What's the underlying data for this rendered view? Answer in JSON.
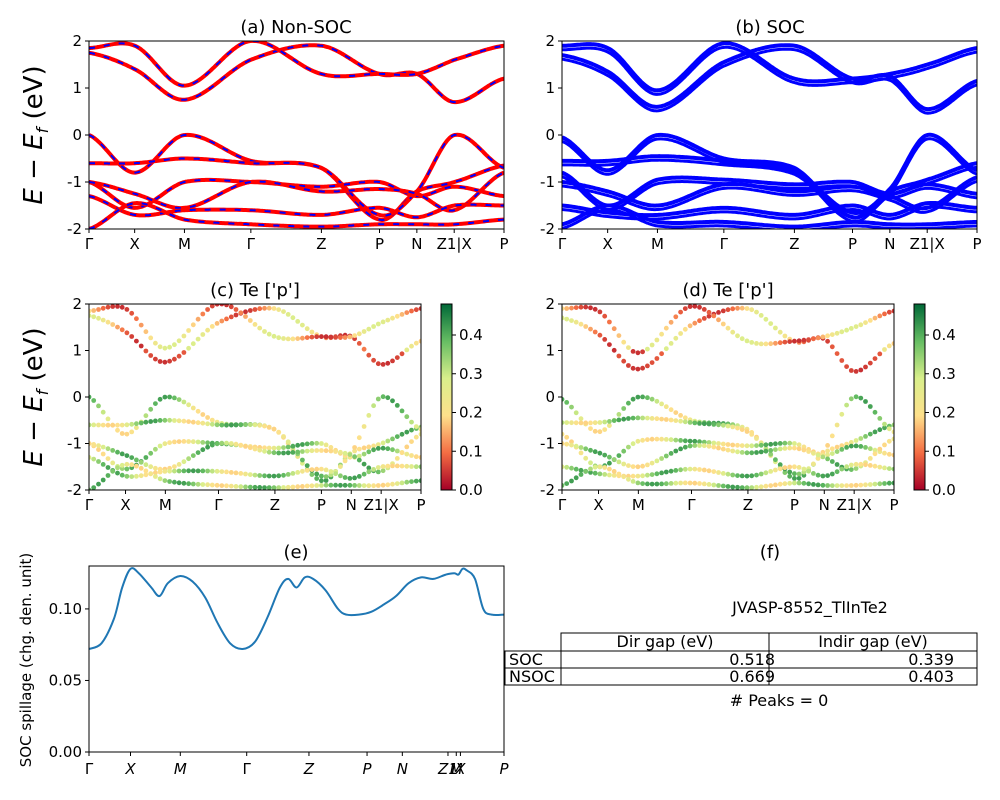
{
  "titles": {
    "a": "(a) Non-SOC",
    "b": "(b) SOC",
    "c": "(c)  Te ['p']",
    "d": "(d) Te ['p']",
    "e": "(e)",
    "f": "(f)"
  },
  "ylabels": {
    "band": "E − E_f (eV)",
    "spillage": "SOC spillage (chg. den. unit)"
  },
  "kpath": {
    "labels": [
      "Γ",
      "X",
      "M",
      "Γ",
      "Z",
      "P",
      "N",
      "Z1|X",
      "P"
    ],
    "positions": [
      0,
      0.11,
      0.23,
      0.39,
      0.56,
      0.7,
      0.79,
      0.88,
      1.0
    ]
  },
  "spillage_kpath": {
    "labels": [
      "Γ",
      "X",
      "M",
      "Γ",
      "Z",
      "P",
      "N",
      "Z1",
      "M",
      "X",
      "P"
    ],
    "positions": [
      0,
      0.1,
      0.22,
      0.38,
      0.53,
      0.67,
      0.755,
      0.865,
      0.885,
      0.895,
      1.0
    ]
  },
  "colorbar": {
    "ticks": [
      "0.0",
      "0.1",
      "0.2",
      "0.3",
      "0.4"
    ],
    "max": 0.48,
    "colors": [
      "#a50026",
      "#f46d43",
      "#fee08b",
      "#d9ef8b",
      "#66bd63",
      "#006837"
    ]
  },
  "colors": {
    "nonsoc_line": "#ff0000",
    "nonsoc_dash": "#0000ff",
    "soc_line": "#0000ff",
    "spillage_line": "#1f77b4"
  },
  "table": {
    "caption": "JVASP-8552_TlInTe2",
    "headers": [
      "Dir gap (eV)",
      "Indir gap (eV)"
    ],
    "rows": [
      {
        "label": "SOC",
        "dir": "0.518",
        "indir": "0.339"
      },
      {
        "label": "NSOC",
        "dir": "0.669",
        "indir": "0.403"
      }
    ],
    "peaks": "# Peaks = 0"
  },
  "chart_data": [
    {
      "type": "line",
      "title": "(a) Non-SOC",
      "ylabel": "E − E_f (eV)",
      "ylim": [
        -2,
        2
      ],
      "yticks": [
        2,
        1,
        0,
        -1,
        -2
      ],
      "x": [
        0,
        0.11,
        0.23,
        0.39,
        0.56,
        0.7,
        0.79,
        0.88,
        1.0
      ],
      "series": [
        {
          "values": [
            1.75,
            1.4,
            0.75,
            1.6,
            1.9,
            1.3,
            1.3,
            0.7,
            1.2
          ]
        },
        {
          "values": [
            1.85,
            1.9,
            1.05,
            2.0,
            1.3,
            1.3,
            1.3,
            1.6,
            1.9
          ]
        },
        {
          "values": [
            0.0,
            -0.8,
            -0.0,
            -0.55,
            -0.7,
            -1.8,
            -1.2,
            -1.0,
            -0.65
          ]
        },
        {
          "values": [
            -0.6,
            -0.6,
            -0.5,
            -0.6,
            -0.7,
            -1.7,
            -1.2,
            0.0,
            -0.7
          ]
        },
        {
          "values": [
            -1.0,
            -1.55,
            -1.0,
            -1.0,
            -1.1,
            -1.0,
            -1.3,
            -1.1,
            -1.3
          ]
        },
        {
          "values": [
            -1.0,
            -1.25,
            -1.55,
            -1.0,
            -1.2,
            -1.15,
            -1.25,
            -1.6,
            -0.8
          ]
        },
        {
          "values": [
            -1.3,
            -1.7,
            -1.6,
            -1.6,
            -1.7,
            -1.55,
            -1.75,
            -1.5,
            -1.5
          ]
        },
        {
          "values": [
            -2.0,
            -1.45,
            -1.8,
            -1.9,
            -1.95,
            -1.9,
            -1.9,
            -1.9,
            -1.8
          ]
        }
      ]
    },
    {
      "type": "line",
      "title": "(b) SOC",
      "ylim": [
        -2,
        2
      ],
      "yticks": [
        2,
        1,
        0,
        -1,
        -2
      ],
      "x": [
        0,
        0.11,
        0.23,
        0.39,
        0.56,
        0.7,
        0.79,
        0.88,
        1.0
      ],
      "series": [
        {
          "values": [
            1.7,
            1.35,
            0.6,
            1.55,
            1.9,
            1.2,
            1.25,
            0.55,
            1.15
          ]
        },
        {
          "values": [
            1.9,
            1.85,
            0.95,
            1.95,
            1.2,
            1.2,
            1.3,
            1.5,
            1.85
          ]
        },
        {
          "values": [
            -0.05,
            -0.75,
            0.0,
            -0.5,
            -0.7,
            -1.75,
            -1.2,
            -0.95,
            -0.6
          ]
        },
        {
          "values": [
            -0.55,
            -0.55,
            -0.45,
            -0.55,
            -0.75,
            -1.65,
            -1.15,
            0.0,
            -0.75
          ]
        },
        {
          "values": [
            -0.8,
            -1.5,
            -0.95,
            -0.95,
            -1.05,
            -1.0,
            -1.25,
            -1.05,
            -1.25
          ]
        },
        {
          "values": [
            -1.0,
            -1.2,
            -1.5,
            -1.05,
            -1.2,
            -1.1,
            -1.3,
            -1.55,
            -0.9
          ]
        },
        {
          "values": [
            -1.5,
            -1.65,
            -1.7,
            -1.55,
            -1.7,
            -1.5,
            -1.7,
            -1.45,
            -1.55
          ]
        },
        {
          "values": [
            -1.9,
            -1.5,
            -1.85,
            -1.85,
            -1.95,
            -1.85,
            -1.9,
            -1.9,
            -1.85
          ]
        }
      ]
    },
    {
      "type": "scatter",
      "title": "(c)  Te ['p']",
      "ylim": [
        -2,
        2
      ],
      "yticks": [
        2,
        1,
        0,
        -1,
        -2
      ],
      "note": "band energies colored by Te p projection (0.0–0.48); values mirror panel (a)"
    },
    {
      "type": "scatter",
      "title": "(d) Te ['p']",
      "ylim": [
        -2,
        2
      ],
      "yticks": [
        2,
        1,
        0,
        -1,
        -2
      ],
      "note": "band energies colored by Te p projection (0.0–0.48); values mirror panel (b)"
    },
    {
      "type": "line",
      "title": "(e)",
      "ylabel": "SOC spillage (chg. den. unit)",
      "ylim": [
        0,
        0.13
      ],
      "yticks": [
        "0.00",
        "0.05",
        "0.10"
      ],
      "x": [
        0,
        0.03,
        0.06,
        0.08,
        0.1,
        0.12,
        0.15,
        0.17,
        0.19,
        0.22,
        0.25,
        0.28,
        0.31,
        0.34,
        0.37,
        0.4,
        0.43,
        0.46,
        0.48,
        0.5,
        0.52,
        0.54,
        0.57,
        0.6,
        0.62,
        0.65,
        0.68,
        0.71,
        0.74,
        0.77,
        0.8,
        0.83,
        0.86,
        0.88,
        0.89,
        0.9,
        0.91,
        0.93,
        0.95,
        0.97,
        1.0
      ],
      "values": [
        0.072,
        0.076,
        0.093,
        0.115,
        0.128,
        0.125,
        0.115,
        0.109,
        0.118,
        0.123,
        0.119,
        0.108,
        0.09,
        0.076,
        0.072,
        0.077,
        0.094,
        0.115,
        0.121,
        0.115,
        0.122,
        0.121,
        0.113,
        0.1,
        0.096,
        0.096,
        0.098,
        0.103,
        0.109,
        0.118,
        0.122,
        0.121,
        0.124,
        0.125,
        0.124,
        0.128,
        0.127,
        0.121,
        0.1,
        0.096,
        0.096
      ]
    },
    {
      "type": "table",
      "title": "(f)",
      "caption": "JVASP-8552_TlInTe2",
      "columns": [
        "",
        "Dir gap (eV)",
        "Indir gap (eV)"
      ],
      "rows": [
        [
          "SOC",
          0.518,
          0.339
        ],
        [
          "NSOC",
          0.669,
          0.403
        ]
      ],
      "footer": "# Peaks = 0"
    }
  ]
}
